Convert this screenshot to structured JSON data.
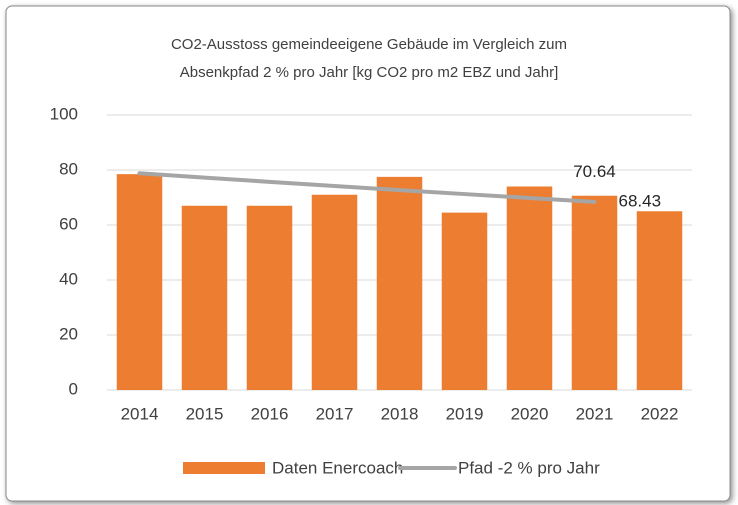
{
  "chart_data": {
    "type": "bar-line",
    "title": [
      "CO2-Ausstoss gemeindeeigene Gebäude im Vergleich zum",
      "Absenkpfad 2 % pro Jahr [kg CO2 pro m2 EBZ  und Jahr]"
    ],
    "categories": [
      "2014",
      "2015",
      "2016",
      "2017",
      "2018",
      "2019",
      "2020",
      "2021",
      "2022"
    ],
    "series": [
      {
        "name": "Daten Enercoach",
        "type": "bar",
        "color": "#ed7d31",
        "values": [
          78.5,
          67,
          67,
          71,
          77.5,
          64.5,
          74,
          70.64,
          65
        ]
      },
      {
        "name": "Pfad -2 % pro Jahr",
        "type": "line",
        "color": "#a5a5a5",
        "values": [
          78.82,
          77.24,
          75.7,
          74.19,
          72.7,
          71.25,
          69.83,
          68.43,
          null
        ]
      }
    ],
    "ylim": [
      0,
      100
    ],
    "yticks": [
      0,
      20,
      40,
      60,
      80,
      100
    ],
    "grid": true,
    "legend": "bottom"
  }
}
